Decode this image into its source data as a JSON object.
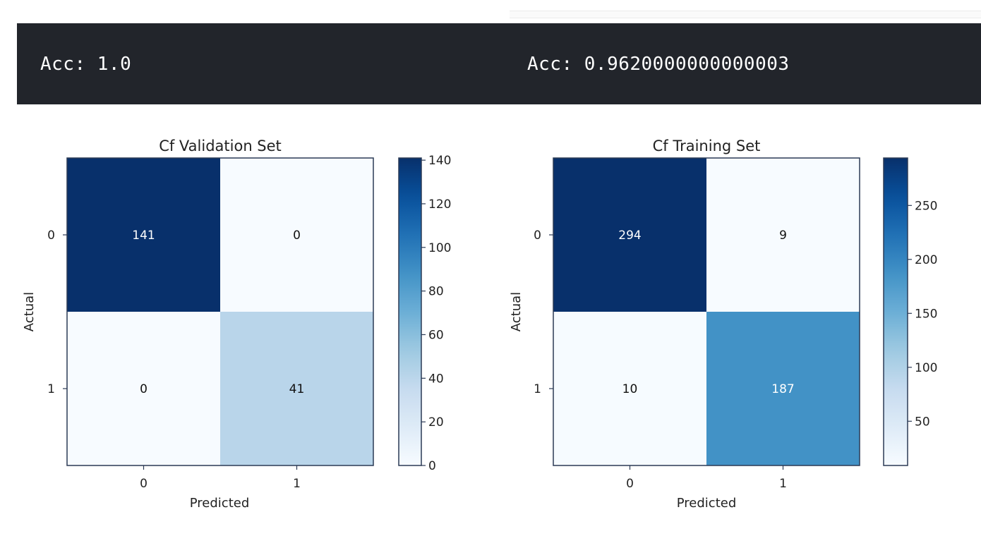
{
  "output": {
    "left_text": "Acc: 1.0",
    "right_text": "Acc: 0.9620000000000003"
  },
  "colors": {
    "output_bg": "#22252b",
    "cmap": "Blues",
    "cmap_stops": [
      "#f7fbff",
      "#deebf7",
      "#c6dbef",
      "#9ecae1",
      "#6baed6",
      "#4292c6",
      "#2171b5",
      "#08519c",
      "#08306b"
    ]
  },
  "chart_data": [
    {
      "type": "heatmap",
      "title": "Cf Validation Set",
      "xlabel": "Predicted",
      "ylabel": "Actual",
      "x_categories": [
        "0",
        "1"
      ],
      "y_categories": [
        "0",
        "1"
      ],
      "values": [
        [
          141,
          0
        ],
        [
          0,
          41
        ]
      ],
      "colorbar": {
        "min": 0,
        "max": 141,
        "ticks": [
          0,
          20,
          40,
          60,
          80,
          100,
          120,
          140
        ]
      },
      "grid": false
    },
    {
      "type": "heatmap",
      "title": "Cf Training Set",
      "xlabel": "Predicted",
      "ylabel": "Actual",
      "x_categories": [
        "0",
        "1"
      ],
      "y_categories": [
        "0",
        "1"
      ],
      "values": [
        [
          294,
          9
        ],
        [
          10,
          187
        ]
      ],
      "colorbar": {
        "min": 9,
        "max": 294,
        "ticks": [
          50,
          100,
          150,
          200,
          250
        ]
      },
      "grid": false
    }
  ]
}
